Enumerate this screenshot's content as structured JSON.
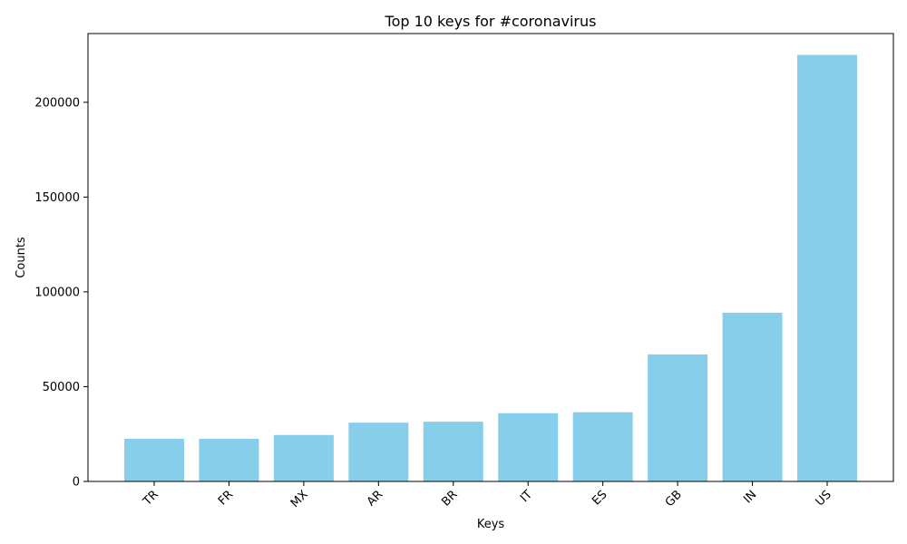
{
  "chart_data": {
    "type": "bar",
    "title": "Top 10 keys for #coronavirus",
    "xlabel": "Keys",
    "ylabel": "Counts",
    "categories": [
      "TR",
      "FR",
      "MX",
      "AR",
      "BR",
      "IT",
      "ES",
      "GB",
      "IN",
      "US"
    ],
    "values": [
      22500,
      22500,
      24500,
      31000,
      31500,
      36000,
      36500,
      67000,
      89000,
      225000
    ],
    "yticks": [
      0,
      50000,
      100000,
      150000,
      200000
    ],
    "ylim": [
      0,
      236250
    ],
    "bar_color": "#87ceeb",
    "grid": false,
    "legend": false
  }
}
